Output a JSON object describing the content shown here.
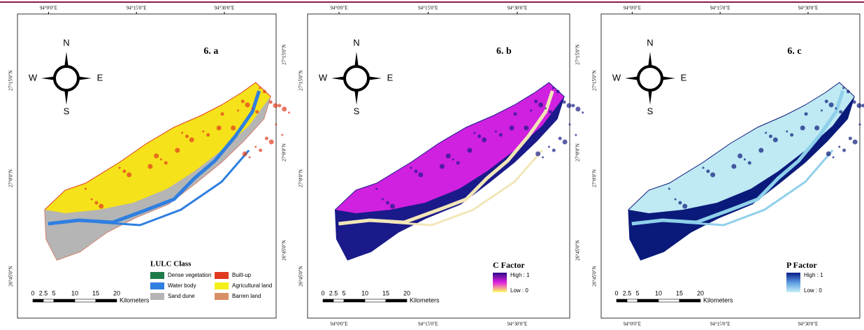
{
  "panels": [
    {
      "label": "6. a",
      "top_ticks": [
        "94°0'0\"E",
        "94°15'0\"E",
        "94°30'0\"E"
      ],
      "left_ticks": [
        "27°15'0\"N",
        "27°0'0\"N",
        "26°45'0\"N"
      ],
      "right_ticks": [
        "27°15'0\"N",
        "27°0'0\"N",
        "26°45'0\"N"
      ],
      "bottom_ticks": [],
      "compass": {
        "n": "N",
        "w": "W",
        "e": "E",
        "s": "S"
      },
      "legend": {
        "title": "LULC Class",
        "entries": [
          {
            "name": "Dense vegetation",
            "color": "#1e7b4a"
          },
          {
            "name": "Water body",
            "color": "#2f7fe0"
          },
          {
            "name": "Sand dune",
            "color": "#b5b5b5"
          },
          {
            "name": "Built-up",
            "color": "#e03a1e"
          },
          {
            "name": "Agricultural land",
            "color": "#f5f01a"
          },
          {
            "name": "Barren land",
            "color": "#d98f66"
          }
        ]
      },
      "scale": {
        "ticks": [
          0,
          2.5,
          5,
          10,
          15,
          20
        ],
        "unit": "Kilometers"
      }
    },
    {
      "label": "6. b",
      "top_ticks": [
        "94°0'0\"E",
        "94°15'0\"E",
        "94°30'0\"E"
      ],
      "left_ticks": [
        "27°15'0\"N",
        "27°0'0\"N",
        "26°45'0\"N"
      ],
      "right_ticks": [
        "27°15'0\"N",
        "27°0'0\"N",
        "26°45'0\"N"
      ],
      "bottom_ticks": [
        "94°0'0\"E",
        "94°15'0\"E",
        "94°30'0\"E"
      ],
      "compass": {
        "n": "N",
        "w": "W",
        "e": "E",
        "s": "S"
      },
      "legend": {
        "title": "C Factor",
        "high": "High : 1",
        "low": "Low : 0",
        "colors": [
          "#2a0a8a",
          "#e020e0",
          "#ffff60"
        ]
      },
      "scale": {
        "ticks": [
          0,
          2.5,
          5,
          10,
          15,
          20
        ],
        "unit": "Kilometers"
      }
    },
    {
      "label": "6. c",
      "top_ticks": [
        "94°0'0\"E",
        "94°15'0\"E",
        "94°30'0\"E"
      ],
      "left_ticks": [
        "27°15'0\"N",
        "27°0'0\"N",
        "26°45'0\"N"
      ],
      "right_ticks": [],
      "bottom_ticks": [
        "94°0'0\"E",
        "94°15'0\"E",
        "94°30'0\"E"
      ],
      "compass": {
        "n": "N",
        "w": "W",
        "e": "E",
        "s": "S"
      },
      "legend": {
        "title": "P Factor",
        "high": "High : 1",
        "low": "Low : 0",
        "colors": [
          "#0a1a8a",
          "#5a9ae0",
          "#c8f0f8"
        ]
      },
      "scale": {
        "ticks": [
          0,
          2.5,
          5,
          10,
          15,
          20
        ],
        "unit": "Kilometers"
      }
    }
  ]
}
